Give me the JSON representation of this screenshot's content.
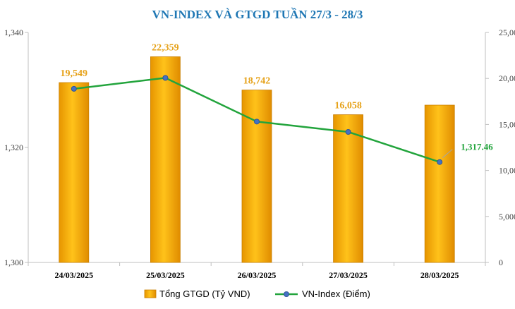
{
  "chart_data": {
    "type": "bar",
    "title": "VN-INDEX VÀ GTGD TUẦN 27/3 - 28/3",
    "categories": [
      "24/03/2025",
      "25/03/2025",
      "26/03/2025",
      "27/03/2025",
      "28/03/2025"
    ],
    "series": [
      {
        "name": "Tổng GTGD (Tỷ VND)",
        "type": "bar",
        "axis": "right",
        "values": [
          19549,
          22359,
          18742,
          16058,
          17100
        ],
        "labels": [
          "19,549",
          "22,359",
          "18,742",
          "16,058",
          ""
        ],
        "color": "#f5a400"
      },
      {
        "name": "VN-Index (Điểm)",
        "type": "line",
        "axis": "left",
        "values": [
          1330.2,
          1332.1,
          1324.5,
          1322.7,
          1317.46
        ],
        "labels": [
          "",
          "",
          "",
          "",
          "1,317.46"
        ],
        "color": "#22a43c"
      }
    ],
    "left_axis": {
      "ticks": [
        "1,300",
        "1,320",
        "1,340"
      ],
      "ylim": [
        1300,
        1340
      ]
    },
    "right_axis": {
      "ticks": [
        "0",
        "5,000",
        "10,000",
        "15,000",
        "20,000",
        "25,000"
      ],
      "ylim": [
        0,
        25000
      ]
    },
    "legend": "bottom",
    "grid": false
  }
}
